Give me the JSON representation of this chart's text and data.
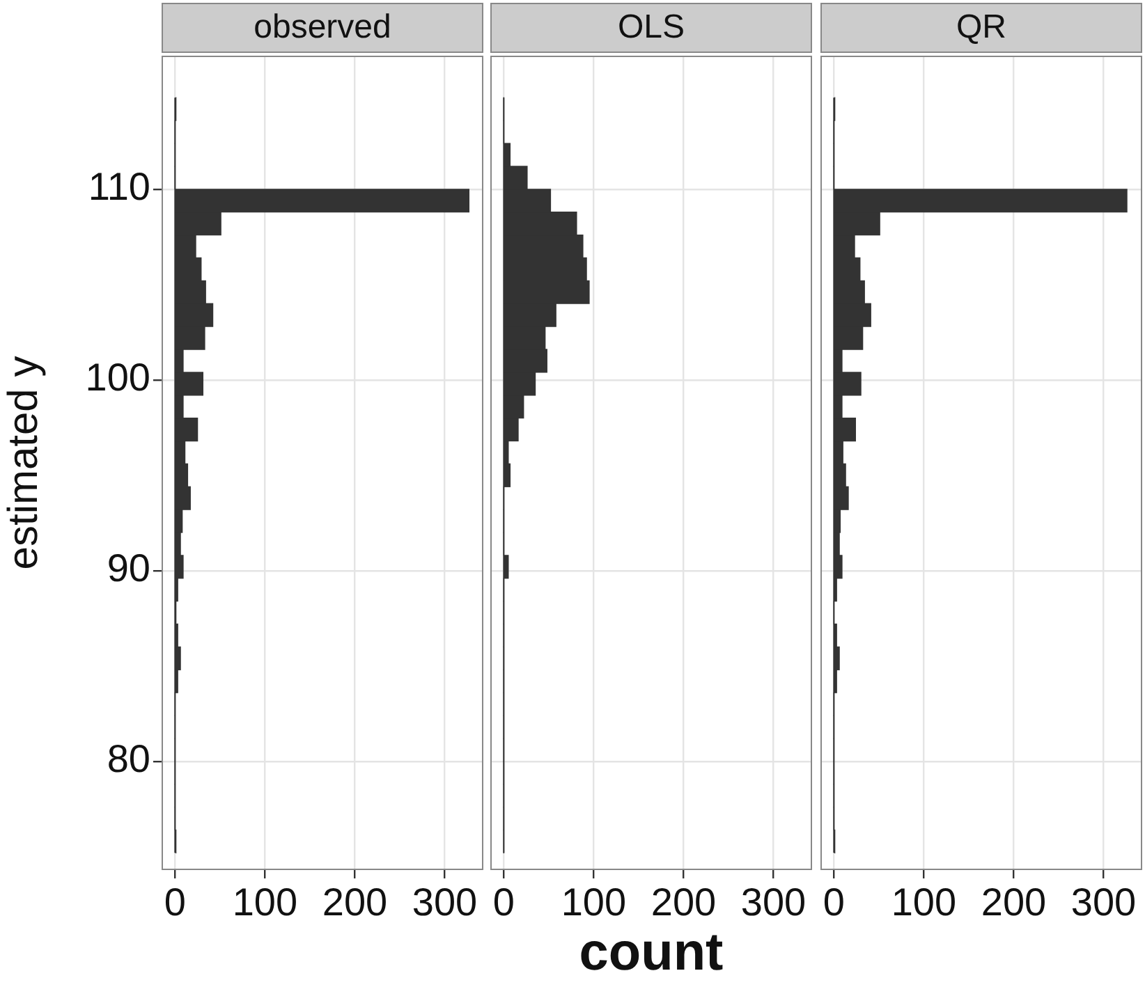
{
  "chart_data": [
    {
      "type": "histogram",
      "title": "observed",
      "ylabel": "estimated y",
      "orientation": "horizontal",
      "color": "#333333",
      "bins": [
        75.2,
        76.4,
        77.6,
        78.8,
        80,
        81.2,
        82.4,
        83.6,
        84.8,
        86,
        87.2,
        88.4,
        89.6,
        90.8,
        92,
        93.2,
        94.4,
        95.6,
        96.8,
        98,
        99.2,
        100.4,
        101.6,
        102.8,
        104,
        105.2,
        106.4,
        107.6,
        108.8,
        110,
        111.2,
        112.4,
        113.6,
        114.8
      ],
      "values": [
        1,
        0,
        0,
        0,
        0,
        0,
        0,
        3,
        6,
        3,
        1,
        3,
        9,
        6,
        8,
        17,
        14,
        11,
        25,
        9,
        31,
        9,
        33,
        42,
        34,
        29,
        23,
        51,
        327,
        0,
        0,
        0,
        1
      ],
      "xlim": [
        -15,
        343
      ],
      "xticks": [
        0,
        100,
        200,
        300
      ],
      "ylim": [
        74.3,
        117
      ],
      "yticks": [
        80,
        90,
        100,
        110
      ],
      "grid": true
    },
    {
      "type": "histogram",
      "title": "OLS",
      "xlabel": "count",
      "orientation": "horizontal",
      "color": "#333333",
      "bins": [
        75.2,
        76.4,
        77.6,
        78.8,
        80,
        81.2,
        82.4,
        83.6,
        84.8,
        86,
        87.2,
        88.4,
        89.6,
        90.8,
        92,
        93.2,
        94.4,
        95.6,
        96.8,
        98,
        99.2,
        100.4,
        101.6,
        102.8,
        104,
        105.2,
        106.4,
        107.6,
        108.8,
        110,
        111.2,
        112.4,
        113.6,
        114.8
      ],
      "values": [
        0,
        0,
        0,
        0,
        0,
        0,
        0,
        0,
        0,
        0,
        0,
        0,
        5,
        0,
        0,
        0,
        7,
        5,
        16,
        22,
        35,
        48,
        46,
        58,
        95,
        92,
        88,
        81,
        52,
        26,
        7,
        0,
        0
      ],
      "xlim": [
        -15,
        343
      ],
      "xticks": [
        0,
        100,
        200,
        300
      ],
      "ylim": [
        74.3,
        117
      ],
      "yticks": [
        80,
        90,
        100,
        110
      ],
      "grid": true,
      "tick_labels": "x"
    },
    {
      "type": "histogram",
      "title": "QR",
      "orientation": "horizontal",
      "color": "#333333",
      "bins": [
        75.2,
        76.4,
        77.6,
        78.8,
        80,
        81.2,
        82.4,
        83.6,
        84.8,
        86,
        87.2,
        88.4,
        89.6,
        90.8,
        92,
        93.2,
        94.4,
        95.6,
        96.8,
        98,
        99.2,
        100.4,
        101.6,
        102.8,
        104,
        105.2,
        106.4,
        107.6,
        108.8,
        110,
        111.2,
        112.4,
        113.6,
        114.8
      ],
      "values": [
        1,
        0,
        0,
        0,
        0,
        0,
        0,
        3,
        6,
        3,
        0,
        3,
        9,
        6,
        7,
        16,
        13,
        10,
        24,
        9,
        30,
        9,
        32,
        41,
        34,
        29,
        23,
        51,
        326,
        0,
        0,
        0,
        1
      ],
      "xlim": [
        -15,
        343
      ],
      "xticks": [
        0,
        100,
        200,
        300
      ],
      "ylim": [
        74.3,
        117
      ],
      "yticks": [
        80,
        90,
        100,
        110
      ],
      "grid": true,
      "tick_labels": "x"
    }
  ]
}
